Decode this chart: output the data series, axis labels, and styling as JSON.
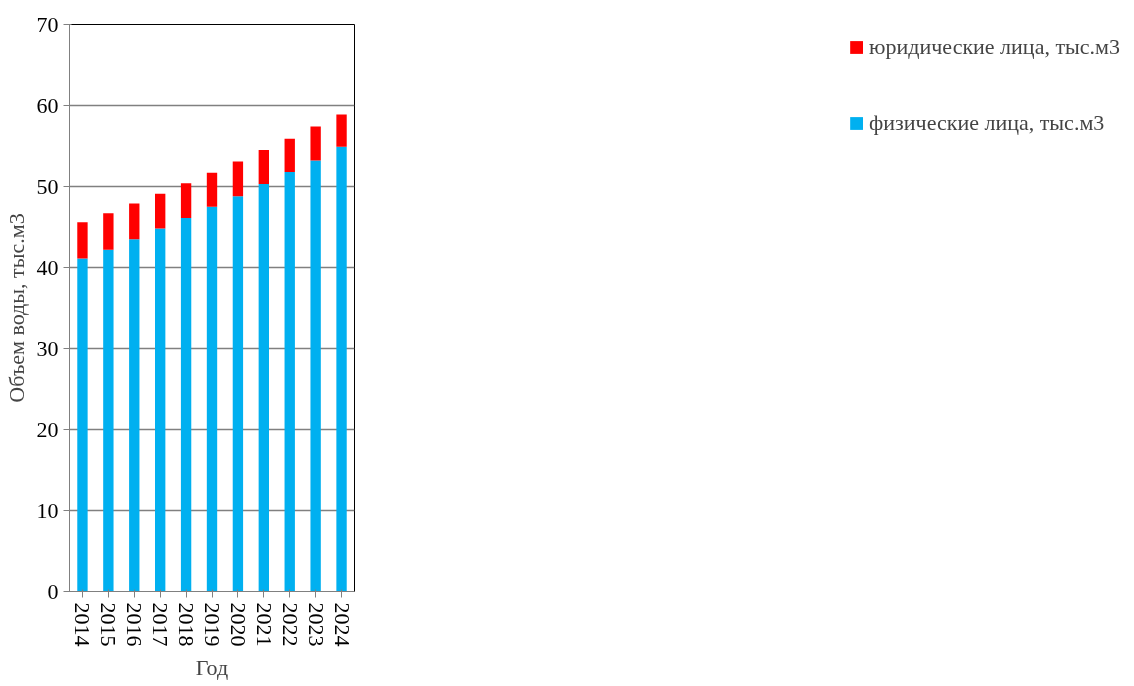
{
  "chart_data": {
    "type": "bar",
    "stacked": true,
    "xlabel": "Год",
    "ylabel": "Объем воды, тыс.м3",
    "categories": [
      "2014",
      "2015",
      "2016",
      "2017",
      "2018",
      "2019",
      "2020",
      "2021",
      "2022",
      "2023",
      "2024"
    ],
    "series": [
      {
        "name": "физические лица, тыс.м3",
        "color": "#00b0f0",
        "values": [
          41.1,
          42.2,
          43.5,
          44.8,
          46.1,
          47.5,
          48.8,
          50.3,
          51.8,
          53.2,
          54.9
        ]
      },
      {
        "name": "юридические лица, тыс.м3",
        "color": "#ff0000",
        "values": [
          4.5,
          4.5,
          4.4,
          4.3,
          4.3,
          4.2,
          4.3,
          4.2,
          4.1,
          4.2,
          4.0
        ]
      }
    ],
    "ylim": [
      0,
      70
    ],
    "yticks": [
      0,
      10,
      20,
      30,
      40,
      50,
      60,
      70
    ],
    "grid": "y",
    "legend": "right"
  }
}
